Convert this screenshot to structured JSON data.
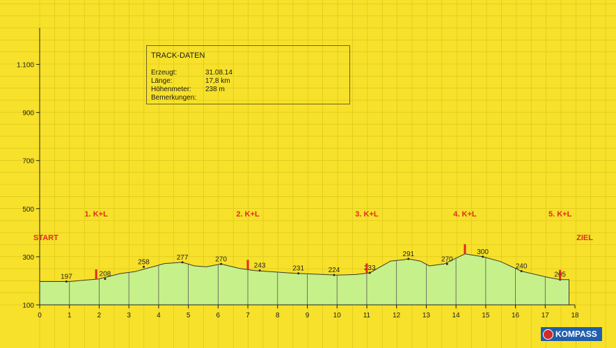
{
  "chart_data": {
    "type": "area",
    "title": "",
    "xlabel": "",
    "ylabel": "",
    "xlim": [
      0,
      18
    ],
    "ylim": [
      100,
      1200
    ],
    "x_ticks": [
      "0",
      "1",
      "2",
      "3",
      "4",
      "5",
      "6",
      "7",
      "8",
      "9",
      "10",
      "11",
      "12",
      "13",
      "14",
      "15",
      "16",
      "17",
      "18"
    ],
    "y_ticks": [
      {
        "value": 100,
        "label": "100"
      },
      {
        "value": 300,
        "label": "300"
      },
      {
        "value": 500,
        "label": "500"
      },
      {
        "value": 700,
        "label": "700"
      },
      {
        "value": 900,
        "label": "900"
      },
      {
        "value": 1100,
        "label": "1.100"
      }
    ],
    "grid": true,
    "profile": [
      [
        0,
        197
      ],
      [
        1,
        197
      ],
      [
        2,
        208
      ],
      [
        2.7,
        230
      ],
      [
        3.2,
        238
      ],
      [
        3.8,
        258
      ],
      [
        4.2,
        272
      ],
      [
        4.8,
        277
      ],
      [
        5.2,
        262
      ],
      [
        5.6,
        258
      ],
      [
        6.1,
        270
      ],
      [
        6.7,
        252
      ],
      [
        7.2,
        243
      ],
      [
        8,
        236
      ],
      [
        8.6,
        231
      ],
      [
        9.2,
        228
      ],
      [
        10,
        224
      ],
      [
        10.6,
        226
      ],
      [
        11.1,
        233
      ],
      [
        11.8,
        282
      ],
      [
        12.2,
        287
      ],
      [
        12.4,
        291
      ],
      [
        12.8,
        282
      ],
      [
        13.1,
        262
      ],
      [
        13.6,
        270
      ],
      [
        14.3,
        312
      ],
      [
        14.9,
        300
      ],
      [
        15.5,
        280
      ],
      [
        16.2,
        240
      ],
      [
        17.1,
        214
      ],
      [
        17.5,
        205
      ],
      [
        17.8,
        205
      ]
    ],
    "point_labels": [
      {
        "x": 0.9,
        "y": 197,
        "label": "197"
      },
      {
        "x": 2.2,
        "y": 208,
        "label": "208"
      },
      {
        "x": 3.5,
        "y": 258,
        "label": "258"
      },
      {
        "x": 4.8,
        "y": 277,
        "label": "277"
      },
      {
        "x": 6.1,
        "y": 270,
        "label": "270"
      },
      {
        "x": 7.4,
        "y": 243,
        "label": "243"
      },
      {
        "x": 8.7,
        "y": 231,
        "label": "231"
      },
      {
        "x": 9.9,
        "y": 224,
        "label": "224"
      },
      {
        "x": 11.1,
        "y": 233,
        "label": "233"
      },
      {
        "x": 12.4,
        "y": 291,
        "label": "291"
      },
      {
        "x": 13.7,
        "y": 270,
        "label": "270"
      },
      {
        "x": 14.9,
        "y": 300,
        "label": "300"
      },
      {
        "x": 16.2,
        "y": 240,
        "label": "240"
      },
      {
        "x": 17.5,
        "y": 205,
        "label": "205"
      }
    ],
    "checkpoints": [
      {
        "x": 1.9,
        "label": "1. K+L"
      },
      {
        "x": 7.0,
        "label": "2. K+L"
      },
      {
        "x": 11.0,
        "label": "3. K+L"
      },
      {
        "x": 14.3,
        "label": "4. K+L"
      },
      {
        "x": 17.5,
        "label": "5. K+L"
      }
    ],
    "start_label": "START",
    "finish_label": "ZIEL",
    "fill_color": "#c6f08a",
    "accent_color": "#e02b20",
    "grid_color": "#d8c21a"
  },
  "track": {
    "title": "TRACK-DATEN",
    "rows": [
      {
        "key": "Erzeugt:",
        "value": "31.08.14"
      },
      {
        "key": "Länge:",
        "value": "17,8 km"
      },
      {
        "key": "Höhenmeter:",
        "value": "238 m"
      },
      {
        "key": "Bemerkungen:",
        "value": ""
      }
    ]
  },
  "logo": {
    "text": "KOMPASS"
  }
}
